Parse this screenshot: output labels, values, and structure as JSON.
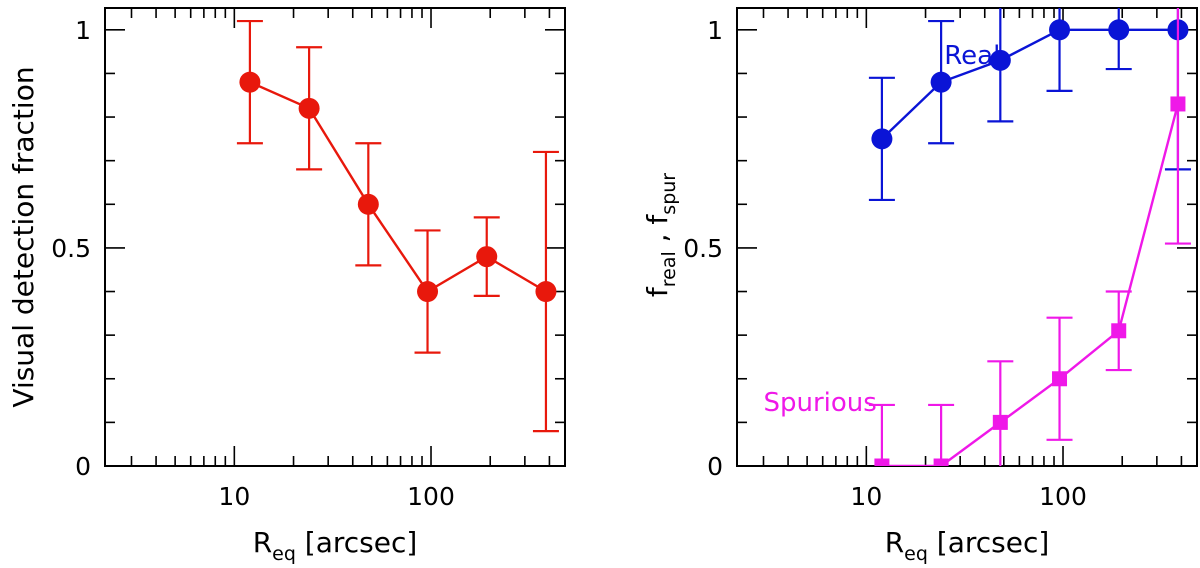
{
  "chart_data": [
    {
      "type": "scatter",
      "name": "left-panel",
      "xscale": "log",
      "xlim": [
        2.2,
        480
      ],
      "ylim": [
        0,
        1.05
      ],
      "xticks_major": [
        10,
        100
      ],
      "xtick_labels": [
        "10",
        "100"
      ],
      "yticks_major": [
        0,
        0.5,
        1
      ],
      "ytick_labels": [
        "0",
        "0.5",
        "1"
      ],
      "yticks_minor": [
        0.1,
        0.2,
        0.3,
        0.4,
        0.6,
        0.7,
        0.8,
        0.9
      ],
      "xlabel": {
        "main": "R",
        "sub": "eq",
        "rest": " [arcsec]"
      },
      "ylabel": "Visual detection fraction",
      "series": [
        {
          "name": "Visual detection fraction",
          "color": "#e8180c",
          "marker": "circle",
          "x": [
            12,
            24,
            48,
            96,
            192,
            384
          ],
          "y": [
            0.88,
            0.82,
            0.6,
            0.4,
            0.48,
            0.4
          ],
          "yerr_low": [
            0.74,
            0.68,
            0.46,
            0.26,
            0.39,
            0.08
          ],
          "yerr_high": [
            1.02,
            0.96,
            0.74,
            0.54,
            0.57,
            0.72
          ]
        }
      ]
    },
    {
      "type": "scatter",
      "name": "right-panel",
      "xscale": "log",
      "xlim": [
        2.2,
        480
      ],
      "ylim": [
        0,
        1.05
      ],
      "xticks_major": [
        10,
        100
      ],
      "xtick_labels": [
        "10",
        "100"
      ],
      "yticks_major": [
        0,
        0.5,
        1
      ],
      "ytick_labels": [
        "0",
        "0.5",
        "1"
      ],
      "yticks_minor": [
        0.1,
        0.2,
        0.3,
        0.4,
        0.6,
        0.7,
        0.8,
        0.9
      ],
      "xlabel": {
        "main": "R",
        "sub": "eq",
        "rest": " [arcsec]"
      },
      "ylabel": {
        "f1": "f",
        "s1": "real",
        "sep": " , ",
        "f2": "f",
        "s2": "spur"
      },
      "series": [
        {
          "name": "Real",
          "color": "#0a14d6",
          "marker": "circle",
          "x": [
            12,
            24,
            48,
            96,
            192,
            384
          ],
          "y": [
            0.75,
            0.88,
            0.93,
            1.0,
            1.0,
            1.0
          ],
          "yerr_low": [
            0.61,
            0.74,
            0.79,
            0.86,
            0.91,
            0.68
          ],
          "yerr_high": [
            0.89,
            1.02,
            1.07,
            1.14,
            1.09,
            1.32
          ]
        },
        {
          "name": "Spurious",
          "color": "#ef18e8",
          "marker": "square",
          "x": [
            12,
            24,
            48,
            96,
            192,
            384
          ],
          "y": [
            0.0,
            0.0,
            0.1,
            0.2,
            0.31,
            0.83
          ],
          "yerr_low": [
            -0.14,
            -0.14,
            -0.04,
            0.06,
            0.22,
            0.51
          ],
          "yerr_high": [
            0.14,
            0.14,
            0.24,
            0.34,
            0.4,
            1.15
          ]
        }
      ],
      "annotations": [
        {
          "text": "Real",
          "color": "#0a14d6",
          "x": 48,
          "y": 0.995,
          "anchor": "end"
        },
        {
          "text": "Spurious",
          "color": "#ef18e8",
          "x": 3.0,
          "y": 0.2,
          "anchor": "start"
        }
      ]
    }
  ]
}
